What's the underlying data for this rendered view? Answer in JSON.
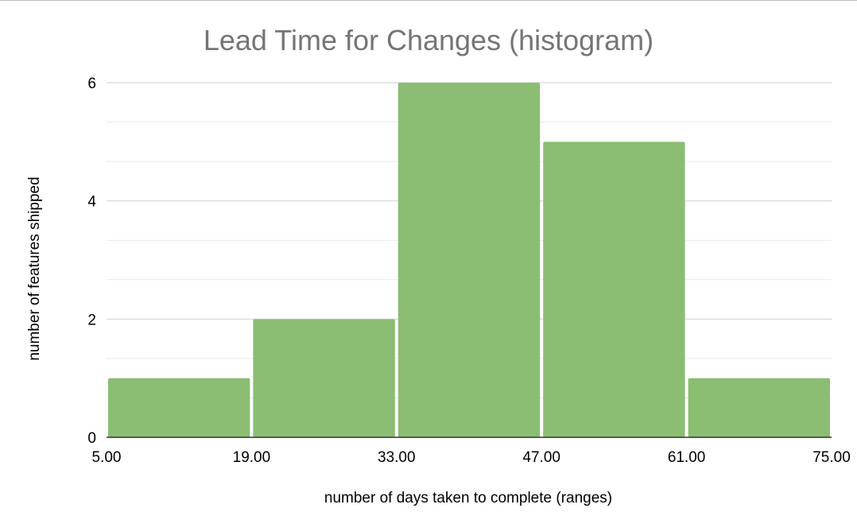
{
  "chart_data": {
    "type": "bar",
    "title": "Lead Time for Changes (histogram)",
    "xlabel": "number of days taken to complete (ranges)",
    "ylabel": "number of features shipped",
    "bins": [
      {
        "from": 5,
        "to": 19,
        "value": 1
      },
      {
        "from": 19,
        "to": 33,
        "value": 2
      },
      {
        "from": 33,
        "to": 47,
        "value": 6
      },
      {
        "from": 47,
        "to": 61,
        "value": 5
      },
      {
        "from": 61,
        "to": 75,
        "value": 1
      }
    ],
    "x_ticks": [
      "5.00",
      "19.00",
      "33.00",
      "47.00",
      "61.00",
      "75.00"
    ],
    "x_tick_values": [
      5,
      19,
      33,
      47,
      61,
      75
    ],
    "y_ticks": [
      "0",
      "2",
      "4",
      "6"
    ],
    "y_tick_values": [
      0,
      2,
      4,
      6
    ],
    "xlim": [
      5,
      75
    ],
    "ylim": [
      0,
      6
    ],
    "minor_gridline_step": 0.6667,
    "grid": true,
    "legend": "none",
    "colors": {
      "bar": "#8bbd72",
      "gridline": "#dddddd",
      "baseline": "#333333",
      "title": "#757575"
    }
  }
}
